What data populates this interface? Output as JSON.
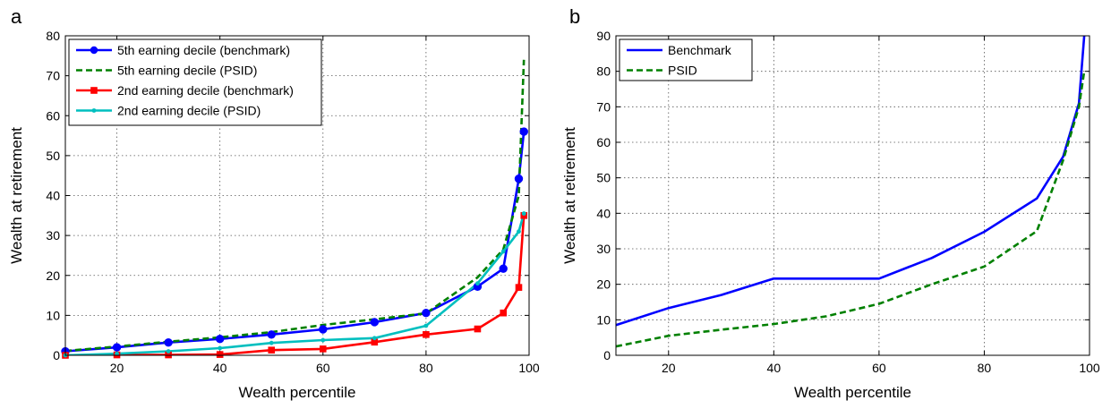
{
  "chart_data": [
    {
      "panel_label": "a",
      "type": "line",
      "xlabel": "Wealth percentile",
      "ylabel": "Wealth at retirement",
      "xlim": [
        10,
        100
      ],
      "ylim": [
        0,
        80
      ],
      "xticks": [
        20,
        40,
        60,
        80,
        100
      ],
      "yticks": [
        0,
        10,
        20,
        30,
        40,
        50,
        60,
        70,
        80
      ],
      "grid": true,
      "legend_position": "top-left",
      "series": [
        {
          "name": "5th earning decile (benchmark)",
          "color": "#0000ff",
          "style": "solid",
          "marker": "circle",
          "x": [
            10,
            20,
            30,
            40,
            50,
            60,
            70,
            80,
            90,
            95,
            98,
            99
          ],
          "y": [
            1.0,
            2.0,
            3.2,
            4.1,
            5.2,
            6.5,
            8.3,
            10.6,
            17.2,
            21.7,
            44.2,
            56.0
          ]
        },
        {
          "name": "5th earning decile (PSID)",
          "color": "#008000",
          "style": "dashed",
          "marker": "none",
          "x": [
            10,
            20,
            30,
            40,
            50,
            60,
            70,
            80,
            90,
            95,
            98,
            99
          ],
          "y": [
            1.1,
            2.2,
            3.4,
            4.5,
            5.8,
            7.6,
            9.0,
            10.5,
            19.5,
            26.5,
            40.0,
            74.0
          ]
        },
        {
          "name": "2nd earning decile (benchmark)",
          "color": "#ff0000",
          "style": "solid",
          "marker": "square",
          "x": [
            10,
            20,
            30,
            40,
            50,
            60,
            70,
            80,
            90,
            95,
            98,
            99
          ],
          "y": [
            0.0,
            0.1,
            0.1,
            0.2,
            1.3,
            1.6,
            3.3,
            5.2,
            6.6,
            10.6,
            17.0,
            35.0
          ]
        },
        {
          "name": "2nd earning decile (PSID)",
          "color": "#00bfbf",
          "style": "solid",
          "marker": "dot",
          "x": [
            10,
            20,
            30,
            40,
            50,
            60,
            70,
            80,
            90,
            95,
            98,
            99
          ],
          "y": [
            0.0,
            0.4,
            1.0,
            1.8,
            3.1,
            3.8,
            4.3,
            7.4,
            18.0,
            26.0,
            31.0,
            35.5
          ]
        }
      ]
    },
    {
      "panel_label": "b",
      "type": "line",
      "xlabel": "Wealth percentile",
      "ylabel": "Wealth at retirement",
      "xlim": [
        10,
        100
      ],
      "ylim": [
        0,
        90
      ],
      "xticks": [
        20,
        40,
        60,
        80,
        100
      ],
      "yticks": [
        0,
        10,
        20,
        30,
        40,
        50,
        60,
        70,
        80,
        90
      ],
      "grid": true,
      "legend_position": "top-left",
      "series": [
        {
          "name": "Benchmark",
          "color": "#0000ff",
          "style": "solid",
          "marker": "none",
          "x": [
            10,
            20,
            30,
            40,
            50,
            60,
            70,
            80,
            90,
            95,
            98,
            99
          ],
          "y": [
            8.5,
            13.3,
            17.0,
            21.6,
            21.6,
            21.6,
            27.4,
            34.8,
            44.2,
            56.0,
            71.0,
            90.0
          ]
        },
        {
          "name": "PSID",
          "color": "#008000",
          "style": "dashed",
          "marker": "none",
          "x": [
            10,
            20,
            30,
            40,
            50,
            60,
            70,
            80,
            90,
            95,
            98,
            99
          ],
          "y": [
            2.5,
            5.5,
            7.2,
            8.8,
            11.0,
            14.5,
            20.0,
            25.0,
            35.0,
            55.0,
            70.0,
            80.0
          ]
        }
      ]
    }
  ]
}
